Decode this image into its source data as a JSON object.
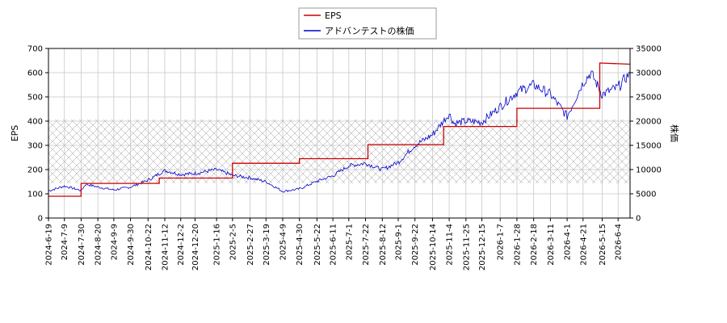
{
  "chart_data": {
    "type": "line",
    "ylabel_left": "EPS",
    "ylabel_right": "株価",
    "ylim_left": [
      0,
      700
    ],
    "ylim_right": [
      0,
      35000
    ],
    "y_ticks_left": [
      "0",
      "100",
      "200",
      "300",
      "400",
      "500",
      "600",
      "700"
    ],
    "y_ticks_right": [
      "0",
      "5000",
      "10000",
      "15000",
      "20000",
      "25000",
      "30000",
      "35000"
    ],
    "x_ticks": [
      "2024-6-19",
      "2024-7-9",
      "2024-7-30",
      "2024-8-20",
      "2024-9-9",
      "2024-9-30",
      "2024-10-22",
      "2024-11-12",
      "2024-12-2",
      "2024-12-20",
      "2025-1-16",
      "2025-2-5",
      "2025-2-27",
      "2025-3-19",
      "2025-4-9",
      "2025-4-30",
      "2025-5-22",
      "2025-6-11",
      "2025-7-1",
      "2025-7-22",
      "2025-8-12",
      "2025-9-1",
      "2025-9-22",
      "2025-10-14",
      "2025-11-4",
      "2025-11-25",
      "2025-12-15",
      "2026-1-7",
      "2026-1-28",
      "2026-2-18",
      "2026-3-11",
      "2026-4-1",
      "2026-4-21",
      "2026-5-15",
      "2026-6-4"
    ],
    "grid": true,
    "legend_position": "top-center",
    "series": [
      {
        "name": "EPS",
        "color": "#cc0000",
        "axis": "left",
        "x": [
          "2024-6-19",
          "2024-7-30",
          "2024-7-30",
          "2024-11-5",
          "2024-11-5",
          "2025-2-5",
          "2025-2-5",
          "2025-4-30",
          "2025-4-30",
          "2025-7-25",
          "2025-7-25",
          "2025-10-28",
          "2025-10-28",
          "2026-1-28",
          "2026-1-28",
          "2026-5-12",
          "2026-5-12",
          "2026-6-19"
        ],
        "y": [
          90,
          90,
          143,
          143,
          165,
          165,
          226,
          226,
          245,
          245,
          303,
          303,
          378,
          378,
          453,
          453,
          640,
          635
        ]
      },
      {
        "name": "アドバンテストの株価",
        "color": "#0000cc",
        "axis": "right",
        "x": [
          "2024-6-19",
          "2024-7-9",
          "2024-7-30",
          "2024-8-5",
          "2024-8-20",
          "2024-9-9",
          "2024-9-30",
          "2024-10-22",
          "2024-11-12",
          "2024-12-2",
          "2024-12-20",
          "2025-1-16",
          "2025-2-5",
          "2025-2-27",
          "2025-3-19",
          "2025-4-9",
          "2025-4-30",
          "2025-5-22",
          "2025-6-11",
          "2025-7-1",
          "2025-7-22",
          "2025-8-12",
          "2025-9-1",
          "2025-9-22",
          "2025-10-14",
          "2025-11-4",
          "2025-11-10",
          "2025-11-25",
          "2025-12-15",
          "2026-1-7",
          "2026-1-28",
          "2026-2-18",
          "2026-3-11",
          "2026-4-1",
          "2026-4-21",
          "2026-5-1",
          "2026-5-15",
          "2026-6-4",
          "2026-6-19"
        ],
        "y": [
          5600,
          6600,
          5700,
          7000,
          6400,
          5800,
          6400,
          7800,
          9800,
          9000,
          9200,
          10000,
          8800,
          8300,
          7500,
          5500,
          6000,
          7600,
          8700,
          10800,
          11300,
          10000,
          11500,
          15000,
          17200,
          21500,
          19500,
          20000,
          19800,
          23000,
          26000,
          27500,
          25500,
          21000,
          28000,
          30000,
          25500,
          27000,
          30000
        ]
      }
    ]
  }
}
